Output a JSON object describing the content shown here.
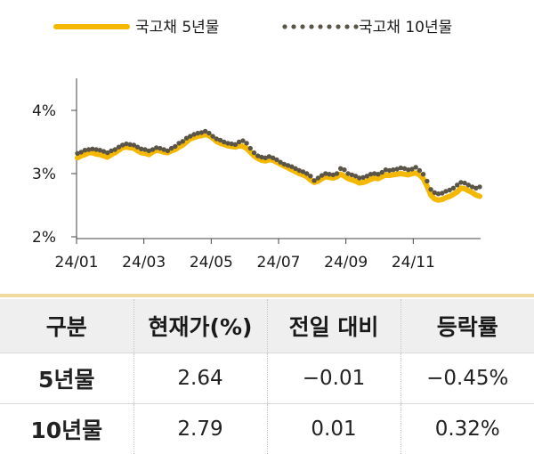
{
  "chart_data": {
    "type": "line",
    "legend": {
      "placement": "top-center",
      "entries": [
        "국고채 5년물",
        "국고채 10년물"
      ]
    },
    "y_ticks": [
      "4%",
      "3%",
      "2%"
    ],
    "ylim": [
      2,
      4
    ],
    "x_ticks": [
      "24/01",
      "24/03",
      "24/05",
      "24/07",
      "24/09",
      "24/11"
    ],
    "x_range": [
      "24/01",
      "24/12"
    ],
    "colors": {
      "five_year": "#f5b800",
      "ten_year": "#5b5548"
    },
    "series": [
      {
        "name": "국고채 5년물",
        "style": "solid",
        "values": [
          3.25,
          3.28,
          3.3,
          3.33,
          3.33,
          3.31,
          3.3,
          3.28,
          3.26,
          3.3,
          3.33,
          3.37,
          3.41,
          3.42,
          3.41,
          3.4,
          3.36,
          3.33,
          3.32,
          3.3,
          3.34,
          3.37,
          3.36,
          3.34,
          3.33,
          3.36,
          3.38,
          3.42,
          3.45,
          3.5,
          3.55,
          3.57,
          3.59,
          3.6,
          3.62,
          3.6,
          3.56,
          3.51,
          3.48,
          3.46,
          3.44,
          3.43,
          3.42,
          3.44,
          3.43,
          3.4,
          3.34,
          3.28,
          3.24,
          3.21,
          3.2,
          3.22,
          3.21,
          3.18,
          3.15,
          3.12,
          3.09,
          3.06,
          3.03,
          3.0,
          2.98,
          2.95,
          2.9,
          2.86,
          2.88,
          2.92,
          2.95,
          2.94,
          2.93,
          2.95,
          2.99,
          2.96,
          2.92,
          2.9,
          2.88,
          2.85,
          2.86,
          2.88,
          2.91,
          2.93,
          2.92,
          2.95,
          2.98,
          2.97,
          2.98,
          2.99,
          3.0,
          2.99,
          2.98,
          3.0,
          3.01,
          2.98,
          2.92,
          2.8,
          2.66,
          2.6,
          2.58,
          2.59,
          2.62,
          2.64,
          2.67,
          2.71,
          2.77,
          2.76,
          2.73,
          2.7,
          2.66,
          2.64
        ]
      },
      {
        "name": "국고채 10년물",
        "style": "dotted",
        "values": [
          3.32,
          3.34,
          3.37,
          3.38,
          3.39,
          3.38,
          3.37,
          3.35,
          3.33,
          3.36,
          3.38,
          3.42,
          3.45,
          3.47,
          3.46,
          3.45,
          3.42,
          3.39,
          3.38,
          3.36,
          3.38,
          3.41,
          3.4,
          3.38,
          3.36,
          3.4,
          3.43,
          3.48,
          3.51,
          3.56,
          3.59,
          3.62,
          3.64,
          3.65,
          3.67,
          3.64,
          3.59,
          3.55,
          3.53,
          3.5,
          3.48,
          3.47,
          3.46,
          3.5,
          3.52,
          3.48,
          3.4,
          3.33,
          3.28,
          3.26,
          3.25,
          3.27,
          3.25,
          3.22,
          3.18,
          3.15,
          3.13,
          3.11,
          3.08,
          3.05,
          3.03,
          3.0,
          2.96,
          2.89,
          2.93,
          2.97,
          3.0,
          2.99,
          2.98,
          3.0,
          3.08,
          3.06,
          3.0,
          2.98,
          2.96,
          2.93,
          2.94,
          2.96,
          2.99,
          3.0,
          2.99,
          3.02,
          3.06,
          3.05,
          3.06,
          3.07,
          3.09,
          3.08,
          3.06,
          3.07,
          3.1,
          3.05,
          2.99,
          2.88,
          2.75,
          2.7,
          2.68,
          2.69,
          2.72,
          2.74,
          2.77,
          2.82,
          2.86,
          2.85,
          2.82,
          2.79,
          2.77,
          2.79
        ]
      }
    ]
  },
  "table": {
    "headers": [
      "구분",
      "현재가(%)",
      "전일 대비",
      "등락률"
    ],
    "rows": [
      [
        "5년물",
        "2.64",
        "−0.01",
        "−0.45%"
      ],
      [
        "10년물",
        "2.79",
        "0.01",
        "0.32%"
      ]
    ]
  }
}
